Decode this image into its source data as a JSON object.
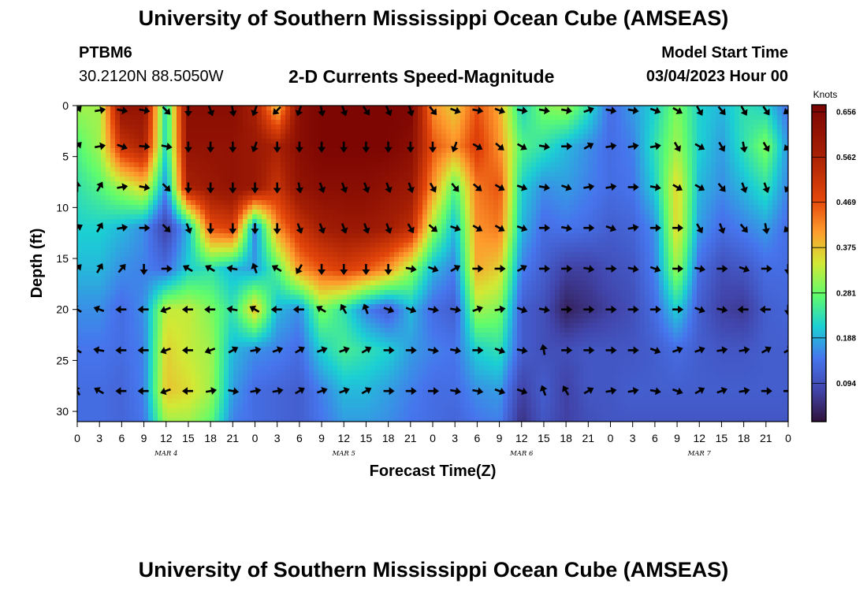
{
  "header": {
    "title": "University of Southern Mississippi Ocean Cube (AMSEAS)",
    "station": "PTBM6",
    "coords": "30.2120N  88.5050W",
    "start_label": "Model Start Time",
    "start_value": "03/04/2023 Hour 00"
  },
  "footer": {
    "title": "University of Southern Mississippi Ocean Cube (AMSEAS)"
  },
  "chart_data": {
    "type": "heatmap",
    "title": "2-D Currents Speed-Magnitude",
    "xlabel": "Forecast Time(Z)",
    "ylabel": "Depth (ft)",
    "x_ticks": [
      "0",
      "3",
      "6",
      "9",
      "12",
      "15",
      "18",
      "21",
      "0",
      "3",
      "6",
      "9",
      "12",
      "15",
      "18",
      "21",
      "0",
      "3",
      "6",
      "9",
      "12",
      "15",
      "18",
      "21",
      "0",
      "3",
      "6",
      "9",
      "12",
      "15",
      "18",
      "21",
      "0"
    ],
    "x_range_hours": [
      0,
      96
    ],
    "day_labels": [
      {
        "label": "MAR 4",
        "hour": 12
      },
      {
        "label": "MAR 5",
        "hour": 36
      },
      {
        "label": "MAR 6",
        "hour": 60
      },
      {
        "label": "MAR 7",
        "hour": 84
      }
    ],
    "y_ticks": [
      0,
      5,
      10,
      15,
      20,
      25,
      30
    ],
    "y_range_ft": [
      0,
      31
    ],
    "colorbar": {
      "unit": "Knots",
      "ticks": [
        "0.656",
        "0.562",
        "0.469",
        "0.375",
        "0.281",
        "0.188",
        "0.094"
      ],
      "range": [
        0.0,
        0.656
      ]
    },
    "grid_hours": [
      0,
      3,
      6,
      9,
      12,
      15,
      18,
      21,
      24,
      27,
      30,
      33,
      36,
      39,
      42,
      45,
      48,
      51,
      54,
      57,
      60,
      63,
      66,
      69,
      72,
      75,
      78,
      81,
      84,
      87,
      90,
      93,
      96
    ],
    "grid_depths_ft": [
      0,
      4,
      8,
      12,
      16,
      20,
      24,
      28,
      31
    ],
    "speed_knots": [
      [
        0.3,
        0.3,
        0.6,
        0.6,
        0.2,
        0.62,
        0.62,
        0.62,
        0.55,
        0.35,
        0.62,
        0.65,
        0.65,
        0.65,
        0.65,
        0.65,
        0.4,
        0.35,
        0.45,
        0.38,
        0.2,
        0.28,
        0.3,
        0.22,
        0.12,
        0.16,
        0.2,
        0.28,
        0.2,
        0.18,
        0.22,
        0.2,
        0.12
      ],
      [
        0.25,
        0.3,
        0.5,
        0.55,
        0.2,
        0.6,
        0.6,
        0.6,
        0.58,
        0.55,
        0.62,
        0.65,
        0.65,
        0.65,
        0.65,
        0.62,
        0.45,
        0.4,
        0.48,
        0.4,
        0.25,
        0.22,
        0.18,
        0.15,
        0.12,
        0.14,
        0.22,
        0.3,
        0.2,
        0.16,
        0.22,
        0.28,
        0.15
      ],
      [
        0.22,
        0.25,
        0.3,
        0.35,
        0.15,
        0.55,
        0.58,
        0.6,
        0.58,
        0.5,
        0.6,
        0.62,
        0.62,
        0.62,
        0.6,
        0.58,
        0.4,
        0.25,
        0.42,
        0.45,
        0.2,
        0.15,
        0.16,
        0.14,
        0.12,
        0.13,
        0.2,
        0.35,
        0.18,
        0.15,
        0.18,
        0.22,
        0.14
      ],
      [
        0.2,
        0.2,
        0.18,
        0.15,
        0.06,
        0.18,
        0.45,
        0.48,
        0.14,
        0.4,
        0.5,
        0.56,
        0.58,
        0.58,
        0.56,
        0.52,
        0.3,
        0.18,
        0.4,
        0.42,
        0.18,
        0.12,
        0.13,
        0.12,
        0.1,
        0.11,
        0.15,
        0.35,
        0.16,
        0.12,
        0.14,
        0.16,
        0.12
      ],
      [
        0.18,
        0.18,
        0.15,
        0.14,
        0.12,
        0.2,
        0.22,
        0.18,
        0.16,
        0.25,
        0.4,
        0.45,
        0.48,
        0.45,
        0.4,
        0.3,
        0.18,
        0.14,
        0.38,
        0.35,
        0.14,
        0.1,
        0.06,
        0.06,
        0.08,
        0.09,
        0.14,
        0.3,
        0.12,
        0.08,
        0.09,
        0.12,
        0.12
      ],
      [
        0.15,
        0.15,
        0.12,
        0.15,
        0.32,
        0.32,
        0.28,
        0.22,
        0.36,
        0.18,
        0.15,
        0.28,
        0.22,
        0.14,
        0.1,
        0.18,
        0.12,
        0.1,
        0.3,
        0.28,
        0.1,
        0.08,
        0.02,
        0.04,
        0.06,
        0.08,
        0.12,
        0.2,
        0.1,
        0.06,
        0.05,
        0.1,
        0.11
      ],
      [
        0.13,
        0.13,
        0.12,
        0.14,
        0.35,
        0.32,
        0.3,
        0.18,
        0.15,
        0.14,
        0.12,
        0.2,
        0.24,
        0.22,
        0.2,
        0.16,
        0.14,
        0.13,
        0.2,
        0.22,
        0.1,
        0.08,
        0.08,
        0.09,
        0.09,
        0.09,
        0.1,
        0.12,
        0.1,
        0.09,
        0.09,
        0.1,
        0.1
      ],
      [
        0.12,
        0.12,
        0.11,
        0.14,
        0.36,
        0.34,
        0.3,
        0.16,
        0.12,
        0.11,
        0.1,
        0.14,
        0.18,
        0.18,
        0.16,
        0.14,
        0.12,
        0.12,
        0.15,
        0.16,
        0.06,
        0.1,
        0.06,
        0.09,
        0.09,
        0.1,
        0.1,
        0.1,
        0.1,
        0.1,
        0.1,
        0.1,
        0.1
      ],
      [
        0.12,
        0.12,
        0.11,
        0.13,
        0.3,
        0.3,
        0.26,
        0.14,
        0.12,
        0.11,
        0.1,
        0.13,
        0.16,
        0.16,
        0.15,
        0.13,
        0.12,
        0.11,
        0.13,
        0.14,
        0.04,
        0.09,
        0.06,
        0.08,
        0.09,
        0.09,
        0.09,
        0.09,
        0.09,
        0.09,
        0.09,
        0.09,
        0.09
      ]
    ],
    "arrow_rows_ft": [
      0,
      4,
      8,
      12,
      16,
      20,
      24,
      28
    ],
    "arrow_angles_deg": [
      [
        45,
        80,
        100,
        100,
        135,
        180,
        160,
        170,
        200,
        225,
        200,
        170,
        160,
        145,
        155,
        165,
        140,
        110,
        100,
        110,
        100,
        100,
        100,
        70,
        100,
        100,
        110,
        120,
        150,
        140,
        150,
        145,
        230
      ],
      [
        45,
        80,
        110,
        95,
        100,
        180,
        180,
        180,
        200,
        180,
        180,
        180,
        180,
        180,
        180,
        180,
        180,
        200,
        120,
        130,
        120,
        100,
        90,
        60,
        80,
        80,
        80,
        150,
        120,
        150,
        170,
        150,
        225
      ],
      [
        0,
        30,
        80,
        100,
        135,
        180,
        180,
        180,
        180,
        180,
        170,
        160,
        160,
        160,
        160,
        160,
        150,
        140,
        130,
        120,
        110,
        100,
        110,
        80,
        80,
        90,
        100,
        120,
        120,
        140,
        160,
        160,
        210
      ],
      [
        60,
        30,
        80,
        90,
        135,
        160,
        180,
        180,
        180,
        180,
        160,
        160,
        160,
        160,
        160,
        150,
        130,
        110,
        120,
        120,
        110,
        90,
        100,
        90,
        110,
        80,
        90,
        90,
        150,
        160,
        140,
        170,
        225
      ],
      [
        45,
        30,
        40,
        180,
        90,
        300,
        300,
        280,
        340,
        300,
        210,
        180,
        180,
        180,
        180,
        100,
        110,
        60,
        90,
        90,
        60,
        90,
        90,
        100,
        90,
        100,
        110,
        90,
        100,
        90,
        110,
        90,
        180
      ],
      [
        300,
        290,
        270,
        270,
        250,
        270,
        270,
        280,
        300,
        270,
        270,
        300,
        330,
        340,
        110,
        110,
        100,
        100,
        70,
        80,
        110,
        100,
        90,
        90,
        90,
        90,
        90,
        90,
        110,
        100,
        270,
        270,
        180
      ],
      [
        300,
        280,
        270,
        270,
        250,
        270,
        250,
        60,
        80,
        70,
        60,
        70,
        70,
        60,
        90,
        90,
        100,
        100,
        90,
        110,
        100,
        350,
        90,
        90,
        90,
        90,
        110,
        70,
        70,
        80,
        80,
        60,
        60
      ],
      [
        330,
        300,
        270,
        270,
        250,
        270,
        80,
        100,
        80,
        80,
        60,
        70,
        70,
        60,
        90,
        90,
        90,
        100,
        100,
        110,
        110,
        340,
        330,
        60,
        80,
        80,
        100,
        110,
        60,
        70,
        80,
        90,
        90
      ]
    ]
  }
}
